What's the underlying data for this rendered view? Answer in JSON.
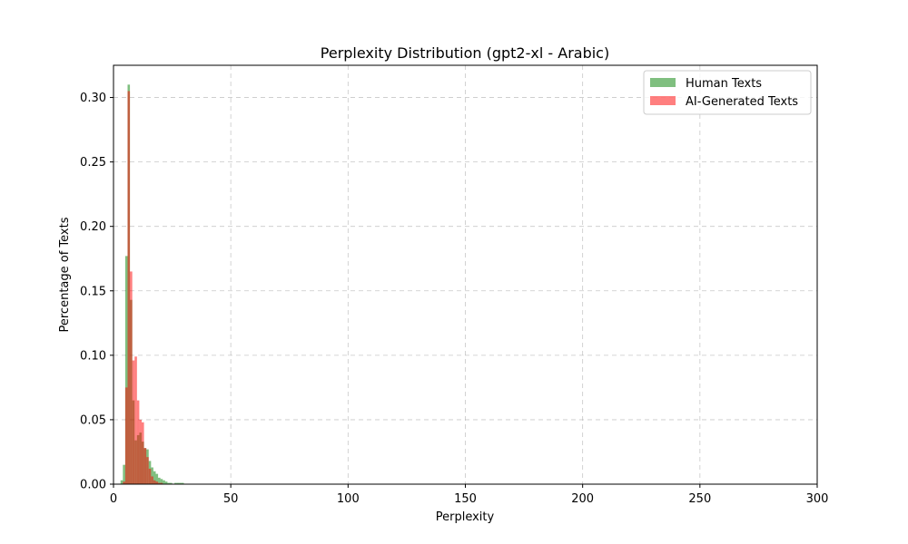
{
  "chart_data": {
    "type": "bar",
    "title": "Perplexity Distribution (gpt2-xl - Arabic)",
    "xlabel": "Perplexity",
    "ylabel": "Percentage of Texts",
    "xlim": [
      0,
      300
    ],
    "ylim": [
      0,
      0.325
    ],
    "xticks": [
      0,
      50,
      100,
      150,
      200,
      250,
      300
    ],
    "xtick_labels": [
      "0",
      "50",
      "100",
      "150",
      "200",
      "250",
      "300"
    ],
    "yticks": [
      0.0,
      0.05,
      0.1,
      0.15,
      0.2,
      0.25,
      0.3
    ],
    "ytick_labels": [
      "0.00",
      "0.05",
      "0.10",
      "0.15",
      "0.20",
      "0.25",
      "0.30"
    ],
    "grid": true,
    "legend_position": "top-right",
    "bin_width": 1,
    "series": [
      {
        "name": "Human Texts",
        "color": "#008000",
        "opacity": 0.5,
        "bins": [
          [
            3,
            0.003
          ],
          [
            4,
            0.015
          ],
          [
            5,
            0.177
          ],
          [
            6,
            0.31
          ],
          [
            7,
            0.143
          ],
          [
            8,
            0.065
          ],
          [
            9,
            0.034
          ],
          [
            10,
            0.038
          ],
          [
            11,
            0.04
          ],
          [
            12,
            0.033
          ],
          [
            13,
            0.028
          ],
          [
            14,
            0.027
          ],
          [
            15,
            0.018
          ],
          [
            16,
            0.013
          ],
          [
            17,
            0.01
          ],
          [
            18,
            0.008
          ],
          [
            19,
            0.005
          ],
          [
            20,
            0.004
          ],
          [
            21,
            0.003
          ],
          [
            22,
            0.002
          ],
          [
            23,
            0.001
          ],
          [
            24,
            0.001
          ],
          [
            26,
            0.001
          ],
          [
            27,
            0.001
          ],
          [
            28,
            0.001
          ],
          [
            29,
            0.001
          ]
        ]
      },
      {
        "name": "AI-Generated Texts",
        "color": "#ff0000",
        "opacity": 0.5,
        "bins": [
          [
            4,
            0.002
          ],
          [
            5,
            0.075
          ],
          [
            6,
            0.305
          ],
          [
            7,
            0.165
          ],
          [
            8,
            0.096
          ],
          [
            9,
            0.099
          ],
          [
            10,
            0.065
          ],
          [
            11,
            0.05
          ],
          [
            12,
            0.048
          ],
          [
            13,
            0.028
          ],
          [
            14,
            0.021
          ],
          [
            15,
            0.012
          ],
          [
            16,
            0.006
          ],
          [
            17,
            0.003
          ],
          [
            18,
            0.002
          ],
          [
            19,
            0.001
          ],
          [
            20,
            0.001
          ]
        ]
      }
    ]
  }
}
